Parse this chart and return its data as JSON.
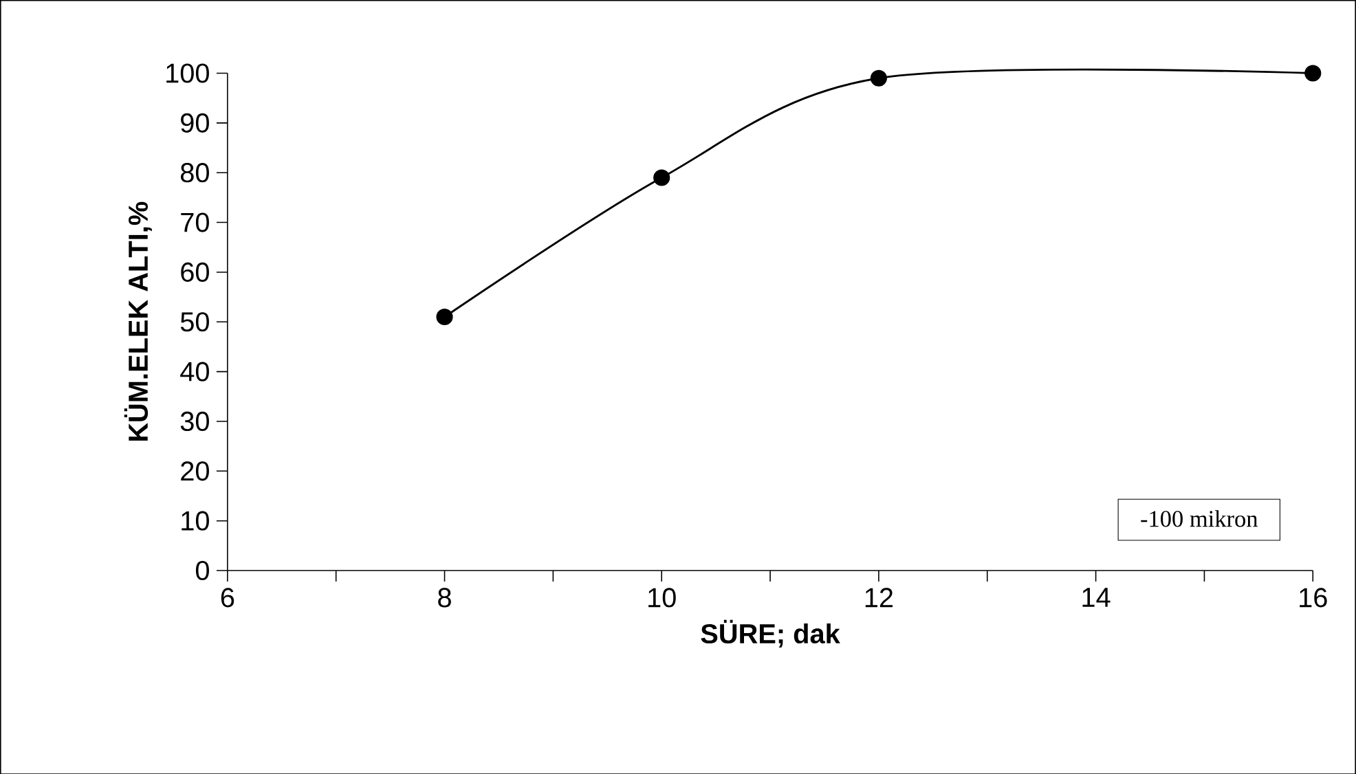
{
  "chart_data": {
    "type": "line",
    "xlabel": "SÜRE; dak",
    "ylabel": "KÜM.ELEK ALTI,%",
    "x": [
      8,
      10,
      12,
      16
    ],
    "series": [
      {
        "name": "-100 mikron",
        "color": "#000000",
        "values": [
          51,
          79,
          99,
          100
        ]
      }
    ],
    "xlim": [
      6,
      16
    ],
    "xticks": [
      6,
      {
        "value": 7,
        "label": null
      },
      8,
      {
        "value": 9,
        "label": null
      },
      10,
      {
        "value": 11,
        "label": null
      },
      12,
      {
        "value": 13,
        "label": null
      },
      14,
      {
        "value": 15,
        "label": null
      },
      16
    ],
    "ylim": [
      0,
      100
    ],
    "yticks": [
      0,
      10,
      20,
      30,
      40,
      50,
      60,
      70,
      80,
      90,
      100
    ],
    "marker": "circle",
    "line_style": "solid",
    "legend": "bottom right",
    "grid": false
  }
}
